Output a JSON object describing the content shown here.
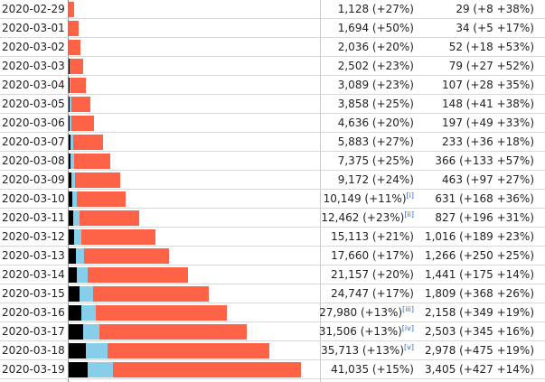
{
  "colors": {
    "deaths": "#000000",
    "recoveries": "#87ceeb",
    "active": "#ff6347"
  },
  "rows": [
    {
      "date": "2020-02-29",
      "cases": "1,128 (+27%)",
      "note": "",
      "deaths": "29 (+8 +38%)",
      "d": 0,
      "r": 0,
      "a": 6
    },
    {
      "date": "2020-03-01",
      "cases": "1,694 (+50%)",
      "note": "",
      "deaths": "34 (+5 +17%)",
      "d": 0,
      "r": 0,
      "a": 11
    },
    {
      "date": "2020-03-02",
      "cases": "2,036 (+20%)",
      "note": "",
      "deaths": "52 (+18 +53%)",
      "d": 0,
      "r": 0,
      "a": 13
    },
    {
      "date": "2020-03-03",
      "cases": "2,502 (+23%)",
      "note": "",
      "deaths": "79 (+27 +52%)",
      "d": 1,
      "r": 0,
      "a": 15
    },
    {
      "date": "2020-03-04",
      "cases": "3,089 (+23%)",
      "note": "",
      "deaths": "107 (+28 +35%)",
      "d": 1,
      "r": 1,
      "a": 17
    },
    {
      "date": "2020-03-05",
      "cases": "3,858 (+25%)",
      "note": "",
      "deaths": "148 (+41 +38%)",
      "d": 1,
      "r": 2,
      "a": 21
    },
    {
      "date": "2020-03-06",
      "cases": "4,636 (+20%)",
      "note": "",
      "deaths": "197 (+49 +33%)",
      "d": 1,
      "r": 2,
      "a": 25
    },
    {
      "date": "2020-03-07",
      "cases": "5,883 (+27%)",
      "note": "",
      "deaths": "233 (+36 +18%)",
      "d": 2,
      "r": 3,
      "a": 33
    },
    {
      "date": "2020-03-08",
      "cases": "7,375 (+25%)",
      "note": "",
      "deaths": "366 (+133 +57%)",
      "d": 2,
      "r": 4,
      "a": 40
    },
    {
      "date": "2020-03-09",
      "cases": "9,172 (+24%)",
      "note": "",
      "deaths": "463 (+97 +27%)",
      "d": 3,
      "r": 4,
      "a": 50
    },
    {
      "date": "2020-03-10",
      "cases": "10,149 (+11%)",
      "note": "[i]",
      "deaths": "631 (+168 +36%)",
      "d": 4,
      "r": 5,
      "a": 54
    },
    {
      "date": "2020-03-11",
      "cases": "12,462 (+23%)",
      "note": "[ii]",
      "deaths": "827 (+196 +31%)",
      "d": 5,
      "r": 7,
      "a": 66
    },
    {
      "date": "2020-03-12",
      "cases": "15,113 (+21%)",
      "note": "",
      "deaths": "1,016 (+189 +23%)",
      "d": 6,
      "r": 8,
      "a": 82
    },
    {
      "date": "2020-03-13",
      "cases": "17,660 (+17%)",
      "note": "",
      "deaths": "1,266 (+250 +25%)",
      "d": 8,
      "r": 9,
      "a": 94
    },
    {
      "date": "2020-03-14",
      "cases": "21,157 (+20%)",
      "note": "",
      "deaths": "1,441 (+175 +14%)",
      "d": 9,
      "r": 12,
      "a": 111
    },
    {
      "date": "2020-03-15",
      "cases": "24,747 (+17%)",
      "note": "",
      "deaths": "1,809 (+368 +26%)",
      "d": 12,
      "r": 15,
      "a": 128
    },
    {
      "date": "2020-03-16",
      "cases": "27,980 (+13%)",
      "note": "[iii]",
      "deaths": "2,158 (+349 +19%)",
      "d": 14,
      "r": 16,
      "a": 145
    },
    {
      "date": "2020-03-17",
      "cases": "31,506 (+13%)",
      "note": "[iv]",
      "deaths": "2,503 (+345 +16%)",
      "d": 16,
      "r": 18,
      "a": 163
    },
    {
      "date": "2020-03-18",
      "cases": "35,713 (+13%)",
      "note": "[v]",
      "deaths": "2,978 (+475 +19%)",
      "d": 19,
      "r": 24,
      "a": 179
    },
    {
      "date": "2020-03-19",
      "cases": "41,035 (+15%)",
      "note": "",
      "deaths": "3,405 (+427 +14%)",
      "d": 21,
      "r": 28,
      "a": 208
    }
  ]
}
